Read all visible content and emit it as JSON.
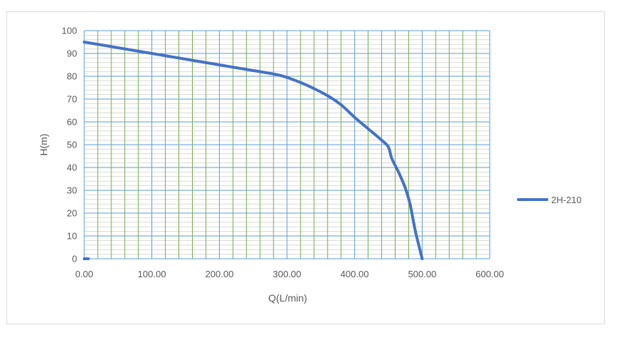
{
  "chart_data": {
    "type": "line",
    "title": "",
    "xlabel": "Q(L/min)",
    "ylabel": "H(m)",
    "xlim": [
      0,
      600
    ],
    "ylim": [
      0,
      100
    ],
    "x_ticks": [
      0,
      100,
      200,
      300,
      400,
      500,
      600
    ],
    "x_tick_labels": [
      "0.00",
      "100.00",
      "200.00",
      "300.00",
      "400.00",
      "500.00",
      "600.00"
    ],
    "y_ticks": [
      0,
      10,
      20,
      30,
      40,
      50,
      60,
      70,
      80,
      90,
      100
    ],
    "y_tick_labels": [
      "0",
      "10",
      "20",
      "30",
      "40",
      "50",
      "60",
      "70",
      "80",
      "90",
      "100"
    ],
    "grid": true,
    "legend_position": "right",
    "colors": {
      "series": "#4472c4",
      "major_grid": "#5b9bd5",
      "minor_x_grid": "#70ad47",
      "minor_y_grid": "#d9d9d9"
    },
    "series": [
      {
        "name": "2H-210",
        "x": [
          0,
          50,
          100,
          150,
          200,
          250,
          280,
          300,
          330,
          360,
          380,
          400,
          420,
          440,
          450,
          455,
          465,
          475,
          482,
          490,
          500
        ],
        "y": [
          95,
          92.5,
          90,
          87.5,
          85,
          82.5,
          81,
          79.5,
          76,
          71.5,
          67.5,
          62,
          57,
          52,
          49,
          44,
          38,
          31,
          24,
          12,
          0
        ]
      },
      {
        "name": "",
        "x": [
          0,
          3,
          6
        ],
        "y": [
          0,
          0,
          0
        ]
      }
    ]
  }
}
